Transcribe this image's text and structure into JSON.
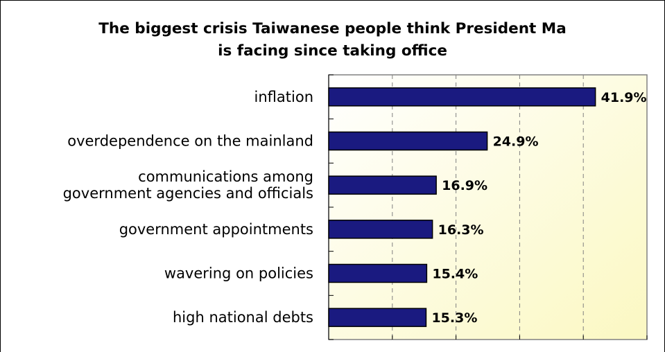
{
  "chart_data": {
    "type": "bar",
    "orientation": "horizontal",
    "title_lines": [
      "The biggest crisis Taiwanese people think President Ma",
      "is facing since taking office"
    ],
    "categories": [
      [
        "inflation"
      ],
      [
        "overdependence on the mainland"
      ],
      [
        "communications among",
        "government agencies and officials"
      ],
      [
        "government appointments"
      ],
      [
        "wavering on policies"
      ],
      [
        "high national debts"
      ]
    ],
    "values": [
      41.9,
      24.9,
      16.9,
      16.3,
      15.4,
      15.3
    ],
    "value_labels": [
      "41.9%",
      "24.9%",
      "16.9%",
      "16.3%",
      "15.4%",
      "15.3%"
    ],
    "xlim": [
      0,
      50
    ],
    "grid": true,
    "colors": {
      "bar": "#1a1a80",
      "bar_edge": "#000000",
      "plot_bg_top": "#ffffff",
      "plot_bg_bottom": "#fbf8c2",
      "grid": "#808080",
      "plot_border": "#808080"
    }
  }
}
